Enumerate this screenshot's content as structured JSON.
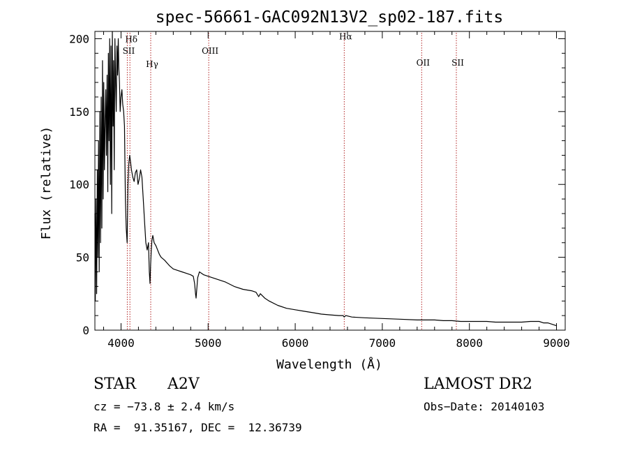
{
  "chart_data": {
    "type": "line",
    "title": "spec-56661-GAC092N13V2_sp02-187.fits",
    "xlabel": "Wavelength (Å)",
    "ylabel": "Flux (relative)",
    "xlim": [
      3700,
      9100
    ],
    "ylim": [
      0,
      205
    ],
    "xticks": [
      4000,
      5000,
      6000,
      7000,
      8000,
      9000
    ],
    "yticks": [
      0,
      50,
      100,
      150,
      200
    ],
    "grid": false,
    "series": [
      {
        "x": [
          3700,
          3705,
          3712,
          3720,
          3728,
          3735,
          3742,
          3750,
          3757,
          3765,
          3772,
          3780,
          3787,
          3795,
          3802,
          3810,
          3818,
          3825,
          3832,
          3840,
          3848,
          3855,
          3863,
          3870,
          3878,
          3885,
          3893,
          3900,
          3908,
          3915,
          3922,
          3930,
          3938,
          3945,
          3953,
          3960,
          3968,
          3975,
          3982,
          3990,
          4000,
          4010,
          4020,
          4030,
          4040,
          4050,
          4060,
          4070,
          4080,
          4090,
          4100,
          4110,
          4120,
          4135,
          4150,
          4165,
          4180,
          4195,
          4210,
          4225,
          4240,
          4255,
          4270,
          4285,
          4300,
          4315,
          4325,
          4333,
          4340,
          4347,
          4355,
          4365,
          4380,
          4400,
          4420,
          4440,
          4460,
          4480,
          4500,
          4530,
          4560,
          4600,
          4650,
          4700,
          4750,
          4800,
          4830,
          4845,
          4855,
          4862,
          4870,
          4880,
          4900,
          4950,
          5000,
          5100,
          5200,
          5300,
          5400,
          5500,
          5550,
          5580,
          5600,
          5650,
          5700,
          5800,
          5900,
          6000,
          6100,
          6200,
          6300,
          6400,
          6500,
          6550,
          6563,
          6580,
          6650,
          6800,
          7000,
          7200,
          7400,
          7500,
          7600,
          7700,
          7800,
          7900,
          8000,
          8100,
          8200,
          8300,
          8400,
          8500,
          8600,
          8700,
          8800,
          8850,
          8900,
          8950,
          9000
        ],
        "y": [
          80,
          20,
          90,
          25,
          110,
          50,
          130,
          40,
          150,
          60,
          160,
          70,
          185,
          90,
          170,
          110,
          145,
          165,
          120,
          175,
          95,
          190,
          130,
          200,
          100,
          195,
          80,
          205,
          140,
          185,
          110,
          200,
          170,
          150,
          195,
          175,
          200,
          180,
          170,
          150,
          160,
          165,
          155,
          150,
          140,
          90,
          70,
          60,
          100,
          115,
          120,
          115,
          110,
          105,
          102,
          108,
          110,
          100,
          104,
          110,
          105,
          90,
          75,
          60,
          55,
          60,
          40,
          32,
          45,
          55,
          62,
          65,
          60,
          58,
          55,
          52,
          50,
          49,
          48,
          46,
          44,
          42,
          41,
          40,
          39,
          38,
          37,
          32,
          25,
          22,
          28,
          36,
          40,
          38,
          37,
          35,
          33,
          30,
          28,
          27,
          26,
          23,
          25,
          22,
          20,
          17,
          15,
          14,
          13,
          12,
          11,
          10.5,
          10,
          10,
          9,
          10,
          9,
          8.5,
          8,
          7.5,
          7,
          7,
          7,
          6.5,
          6.5,
          6,
          6,
          6,
          6,
          5.5,
          5.5,
          5.5,
          5.5,
          6,
          6,
          5,
          5,
          4,
          3
        ]
      }
    ],
    "lines": [
      {
        "x": 4102,
        "label": "Hδ",
        "label_y": 200
      },
      {
        "x": 4072,
        "label": "SII",
        "label_y": 192
      },
      {
        "x": 4341,
        "label": "Hγ",
        "label_y": 183
      },
      {
        "x": 5007,
        "label": "OIII",
        "label_y": 192
      },
      {
        "x": 6563,
        "label": "Hα",
        "label_y": 202
      },
      {
        "x": 7452,
        "label": "OII",
        "label_y": 184
      },
      {
        "x": 7850,
        "label": "SII",
        "label_y": 184
      }
    ]
  },
  "info": {
    "class": "STAR",
    "subclass": "A2V",
    "survey": "LAMOST DR2",
    "cz": "cz = −73.8 ± 2.4 km/s",
    "obs_date": "Obs−Date: 20140103",
    "coords": "RA =  91.35167, DEC =  12.36739"
  }
}
